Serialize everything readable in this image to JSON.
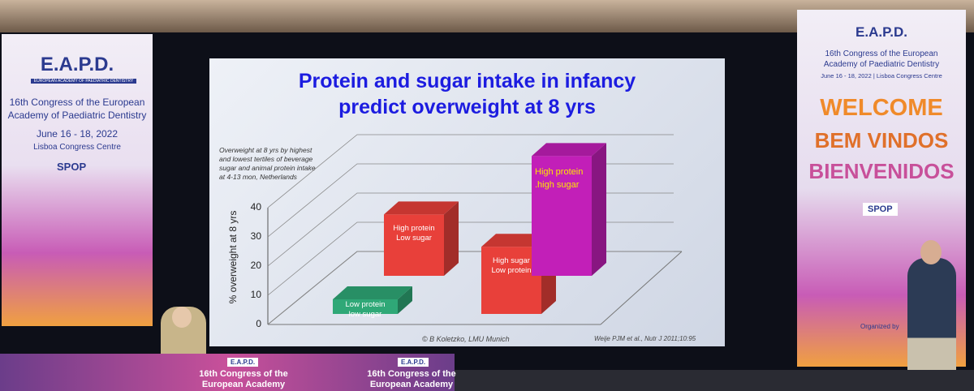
{
  "chart_data": {
    "type": "bar3d",
    "title": "Protein and sugar intake in infancy\npredict overweight at 8 yrs",
    "note": "Overweight at 8 yrs by highest\nand lowest tertiles of beverage\nsugar and animal protein intake\nat 4-13 mon, Netherlands",
    "ylabel": "% overweight at 8 yrs",
    "categories": [
      "Low protein\nlow sugar",
      "High protein\nLow sugar",
      "High sugar\nLow protein",
      "High protein\n.high sugar"
    ],
    "values": [
      5,
      21,
      23,
      41
    ],
    "colors": [
      "#2fa877",
      "#e8403a",
      "#e8403a",
      "#c21fb8"
    ],
    "label_colors": [
      "#ffffff",
      "#ffffff",
      "#ffffff",
      "#ffe600"
    ],
    "ylim": [
      0,
      40
    ],
    "yticks": [
      0,
      10,
      20,
      30,
      40
    ],
    "grid": true,
    "credit": "© B Koletzko, LMU Munich",
    "source": "Weije PJM et al., Nutr J 2011;10:95"
  },
  "left_banner": {
    "logo": "E.A.P.D.",
    "academy": "EUROPEAN ACADEMY OF PAEDIATRIC DENTISTRY",
    "congress": "16th Congress of the European\nAcademy of Paediatric Dentistry",
    "dates": "June 16 - 18, 2022",
    "venue": "Lisboa Congress Centre",
    "society": "SPOP"
  },
  "right_banner": {
    "logo": "E.A.P.D.",
    "congress": "16th Congress of the European\nAcademy of Paediatric Dentistry",
    "dates": "June 16 - 18, 2022  |  Lisboa Congress Centre",
    "welcome": [
      "WELCOME",
      "BEM VINDOS",
      "BIENVENIDOS"
    ],
    "society": "SPOP",
    "organized": "Organized by"
  },
  "desk": {
    "placard": "16th Congress of the\nEuropean Academy",
    "logo": "E.A.P.D."
  }
}
